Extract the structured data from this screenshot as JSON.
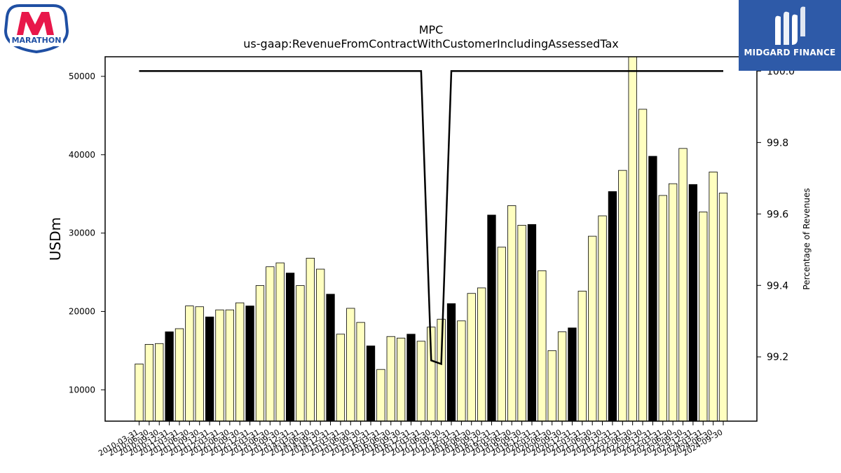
{
  "logos": {
    "left_text": "MARATHON",
    "right_text": "MIDGARD FINANCE"
  },
  "chart_data": {
    "type": "bar",
    "title": "MPC",
    "subtitle": "us-gaap:RevenueFromContractWithCustomerIncludingAssessedTax",
    "ylabel": "USDm",
    "y2label": "Percentage of Revenues",
    "ylim": [
      6000,
      52500
    ],
    "y2lim": [
      99.02,
      100.04
    ],
    "yticks": [
      10000,
      20000,
      30000,
      40000,
      50000
    ],
    "y2ticks": [
      "99.2",
      "99.4",
      "99.6",
      "99.8",
      "100.0"
    ],
    "colors": {
      "bar": "#ffffc0",
      "bar_highlight": "#000000",
      "line": "#000000"
    },
    "categories": [
      "2010-03-31",
      "2010-06-30",
      "2010-09-30",
      "2010-12-31",
      "2011-03-31",
      "2011-06-30",
      "2011-09-30",
      "2011-12-31",
      "2012-03-31",
      "2012-06-30",
      "2012-09-30",
      "2012-12-31",
      "2013-03-31",
      "2013-06-30",
      "2013-09-30",
      "2013-12-31",
      "2014-03-31",
      "2014-06-30",
      "2014-09-30",
      "2014-12-31",
      "2015-03-31",
      "2015-06-30",
      "2015-09-30",
      "2015-12-31",
      "2016-03-31",
      "2016-06-30",
      "2016-09-30",
      "2016-12-31",
      "2017-03-31",
      "2017-06-30",
      "2017-09-30",
      "2017-12-31",
      "2018-03-31",
      "2018-06-30",
      "2018-09-30",
      "2018-12-31",
      "2019-03-31",
      "2019-06-30",
      "2019-09-30",
      "2019-12-31",
      "2020-03-31",
      "2020-06-30",
      "2020-09-30",
      "2020-12-31",
      "2021-03-31",
      "2021-06-30",
      "2021-09-30",
      "2021-12-31",
      "2022-03-31",
      "2022-06-30",
      "2022-09-30",
      "2022-12-31",
      "2023-03-31",
      "2023-06-30",
      "2023-09-30",
      "2023-12-31",
      "2024-03-31",
      "2024-06-30",
      "2024-09-30"
    ],
    "series": [
      {
        "values": [
          13300,
          15800,
          15900,
          17400,
          17800,
          20700,
          20600,
          19300,
          20200,
          20200,
          21100,
          20700,
          23300,
          25700,
          26200,
          24900,
          23300,
          26800,
          25400,
          22200,
          17100,
          20400,
          18600,
          15600,
          12600,
          16800,
          16600,
          17100,
          16200,
          18000,
          19000,
          21000,
          18800,
          22300,
          23000,
          32300,
          28200,
          33500,
          31000,
          31100,
          25200,
          15000,
          17400,
          17900,
          22600,
          29600,
          32200,
          35300,
          38000,
          53200,
          45800,
          39800,
          34800,
          36300,
          40800,
          36200,
          32700,
          37800,
          35100
        ],
        "highlight": [
          false,
          false,
          false,
          true,
          false,
          false,
          false,
          true,
          false,
          false,
          false,
          true,
          false,
          false,
          false,
          true,
          false,
          false,
          false,
          true,
          false,
          false,
          false,
          true,
          false,
          false,
          false,
          true,
          false,
          false,
          false,
          true,
          false,
          false,
          false,
          true,
          false,
          false,
          false,
          true,
          false,
          false,
          false,
          true,
          false,
          false,
          false,
          true,
          false,
          false,
          false,
          true,
          false,
          false,
          false,
          true,
          false,
          false,
          false
        ]
      }
    ],
    "line": {
      "axis": "right",
      "values": [
        100.0,
        100.0,
        100.0,
        100.0,
        100.0,
        100.0,
        100.0,
        100.0,
        100.0,
        100.0,
        100.0,
        100.0,
        100.0,
        100.0,
        100.0,
        100.0,
        100.0,
        100.0,
        100.0,
        100.0,
        100.0,
        100.0,
        100.0,
        100.0,
        100.0,
        100.0,
        100.0,
        100.0,
        100.0,
        99.19,
        99.18,
        100.0,
        100.0,
        100.0,
        100.0,
        100.0,
        100.0,
        100.0,
        100.0,
        100.0,
        100.0,
        100.0,
        100.0,
        100.0,
        100.0,
        100.0,
        100.0,
        100.0,
        100.0,
        100.0,
        100.0,
        100.0,
        100.0,
        100.0,
        100.0,
        100.0,
        100.0,
        100.0,
        100.0
      ]
    }
  }
}
